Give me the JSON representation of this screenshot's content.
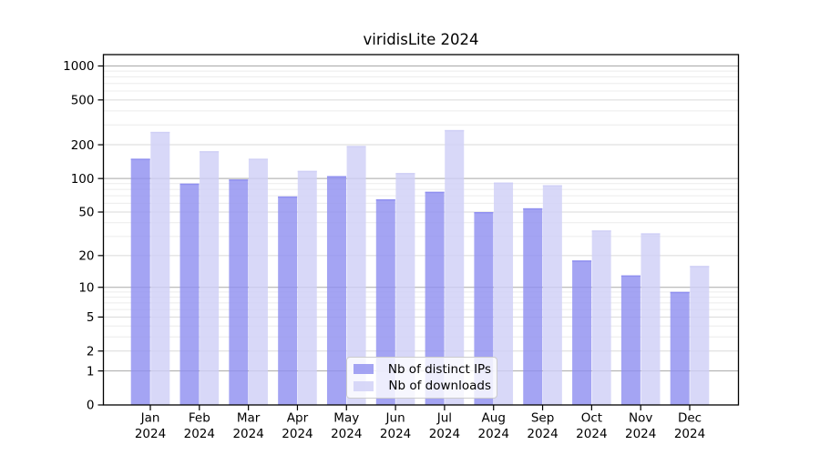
{
  "chart_data": {
    "type": "bar",
    "title": "viridisLite 2024",
    "categories": [
      "Jan 2024",
      "Feb 2024",
      "Mar 2024",
      "Apr 2024",
      "May 2024",
      "Jun 2024",
      "Jul 2024",
      "Aug 2024",
      "Sep 2024",
      "Oct 2024",
      "Nov 2024",
      "Dec 2024"
    ],
    "series": [
      {
        "key": "distinct-ips",
        "name": "Nb of distinct IPs",
        "color": "#9090f0",
        "fill_opacity": 0.82,
        "values": [
          150,
          90,
          98,
          69,
          105,
          65,
          76,
          50,
          54,
          18,
          13,
          9
        ]
      },
      {
        "key": "downloads",
        "name": "Nb of downloads",
        "color": "#d0d0f6",
        "fill_opacity": 0.82,
        "values": [
          260,
          175,
          150,
          117,
          195,
          112,
          270,
          92,
          87,
          34,
          32,
          16
        ]
      }
    ],
    "yscale": "log1p",
    "ylim": [
      0,
      1000
    ],
    "y_ticks": [
      1000,
      500,
      200,
      100,
      50,
      20,
      10,
      5,
      2,
      1,
      0
    ],
    "y_gridlines": {
      "decade": [
        1,
        10,
        100,
        1000
      ],
      "half": [
        2,
        5,
        20,
        50,
        200,
        500
      ],
      "minor": [
        3,
        4,
        6,
        7,
        8,
        9,
        30,
        40,
        60,
        70,
        80,
        90,
        300,
        400,
        600,
        700,
        800,
        900
      ]
    },
    "legend_position": "inside-bottom-center",
    "colors": {
      "grid_decade": "#a8a8a8",
      "grid_half": "#dadada",
      "grid_minor": "#ececec",
      "spine": "#000000",
      "text": "#000000",
      "background": "#ffffff"
    }
  }
}
